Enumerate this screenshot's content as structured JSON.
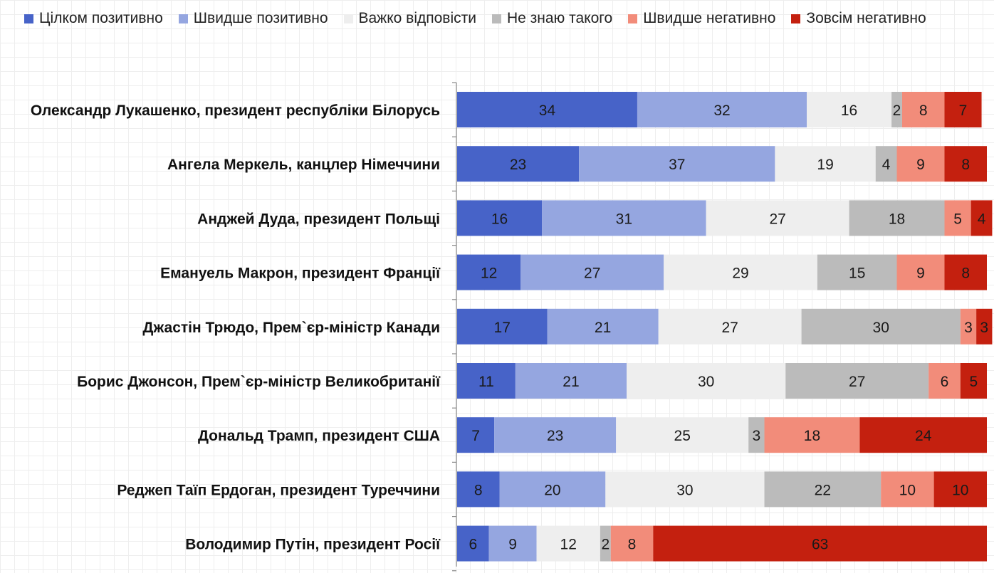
{
  "chart_data": {
    "type": "bar",
    "orientation": "horizontal",
    "stacked": true,
    "xlim": [
      0,
      100
    ],
    "grid": true,
    "legend_position": "top",
    "categories": [
      "Олександр Лукашенко, президент республіки Білорусь",
      "Ангела Меркель, канцлер Німеччини",
      "Анджей Дуда, президент Польщі",
      "Емануель Макрон, президент Франції",
      "Джастін Трюдо, Прем`єр-міністр Канади",
      "Борис Джонсон, Прем`єр-міністр Великобританії",
      "Дональд Трамп, президент США",
      "Реджеп Таїп Ердоган, президент Туреччини",
      "Володимир Путін, президент Росії"
    ],
    "series": [
      {
        "name": "Цілком позитивно",
        "color": "#4763c8",
        "values": [
          34,
          23,
          16,
          12,
          17,
          11,
          7,
          8,
          6
        ]
      },
      {
        "name": "Швидше позитивно",
        "color": "#95a6e0",
        "values": [
          32,
          37,
          31,
          27,
          21,
          21,
          23,
          20,
          9
        ]
      },
      {
        "name": "Важко відповісти",
        "color": "#eeeeee",
        "values": [
          16,
          19,
          27,
          29,
          27,
          30,
          25,
          30,
          12
        ]
      },
      {
        "name": "Не знаю такого",
        "color": "#bbbbbb",
        "values": [
          2,
          4,
          18,
          15,
          30,
          27,
          3,
          22,
          2
        ]
      },
      {
        "name": "Швидше негативно",
        "color": "#f28c7a",
        "values": [
          8,
          9,
          5,
          9,
          3,
          6,
          18,
          10,
          8
        ]
      },
      {
        "name": "Зовсім негативно",
        "color": "#c4200f",
        "values": [
          7,
          8,
          4,
          8,
          3,
          5,
          24,
          10,
          63
        ]
      }
    ]
  }
}
